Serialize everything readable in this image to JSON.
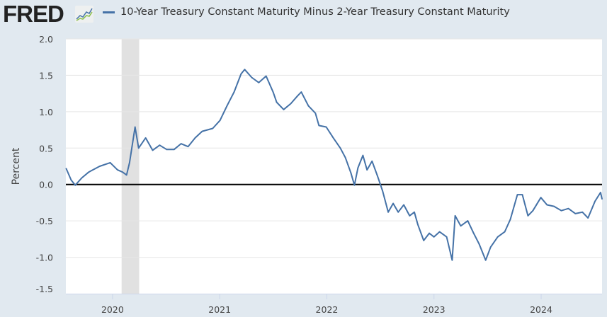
{
  "header": {
    "logo_text": "FRED",
    "logo_icon": "chart-line-icon"
  },
  "chart_data": {
    "type": "line",
    "title": "",
    "legend_position": "top-left",
    "ylabel": "Percent",
    "xlabel": "",
    "ylim": [
      -1.5,
      2.0
    ],
    "xlim": [
      "2019-07-26",
      "2024-07-27"
    ],
    "yticks": [
      "2.0",
      "1.5",
      "1.0",
      "0.5",
      "0.0",
      "-0.5",
      "-1.0",
      "-1.5"
    ],
    "ytick_values": [
      2.0,
      1.5,
      1.0,
      0.5,
      0.0,
      -0.5,
      -1.0,
      -1.5
    ],
    "xticks": [
      "2020",
      "2021",
      "2022",
      "2023",
      "2024"
    ],
    "grid": true,
    "reference_line": 0,
    "recession_shading": [
      [
        "2020-02-01",
        "2020-04-01"
      ]
    ],
    "colors": {
      "series": "#4572a7",
      "recession": "#e1e1e1",
      "zero_line": "#000000",
      "grid": "#e6e6e6",
      "background": "#e1e9f0"
    },
    "series": [
      {
        "name": "10-Year Treasury Constant Maturity Minus 2-Year Treasury Constant Maturity",
        "x": [
          "2019-07-27",
          "2019-08-13",
          "2019-08-27",
          "2019-09-18",
          "2019-10-12",
          "2019-11-18",
          "2019-12-24",
          "2020-01-18",
          "2020-02-04",
          "2020-02-18",
          "2020-02-28",
          "2020-03-18",
          "2020-03-30",
          "2020-04-23",
          "2020-05-17",
          "2020-06-10",
          "2020-07-04",
          "2020-07-29",
          "2020-08-22",
          "2020-09-15",
          "2020-10-09",
          "2020-11-02",
          "2020-12-08",
          "2021-01-02",
          "2021-01-26",
          "2021-02-19",
          "2021-03-15",
          "2021-03-27",
          "2021-04-20",
          "2021-05-14",
          "2021-06-08",
          "2021-07-02",
          "2021-07-14",
          "2021-08-07",
          "2021-08-31",
          "2021-09-24",
          "2021-10-06",
          "2021-10-30",
          "2021-11-23",
          "2021-12-05",
          "2021-12-30",
          "2022-01-23",
          "2022-02-16",
          "2022-03-05",
          "2022-03-24",
          "2022-04-05",
          "2022-04-17",
          "2022-05-04",
          "2022-05-18",
          "2022-06-04",
          "2022-06-23",
          "2022-07-10",
          "2022-07-29",
          "2022-08-15",
          "2022-09-01",
          "2022-09-20",
          "2022-10-10",
          "2022-10-26",
          "2022-11-07",
          "2022-11-27",
          "2022-12-16",
          "2023-01-01",
          "2023-01-20",
          "2023-02-13",
          "2023-03-04",
          "2023-03-14",
          "2023-04-02",
          "2023-04-26",
          "2023-05-16",
          "2023-06-04",
          "2023-06-26",
          "2023-07-13",
          "2023-08-06",
          "2023-08-30",
          "2023-09-18",
          "2023-10-12",
          "2023-10-29",
          "2023-11-17",
          "2023-12-04",
          "2023-12-31",
          "2024-01-21",
          "2024-02-14",
          "2024-03-10",
          "2024-04-03",
          "2024-04-27",
          "2024-05-21",
          "2024-06-09",
          "2024-07-03",
          "2024-07-22",
          "2024-07-27"
        ],
        "y": [
          0.22,
          0.06,
          -0.01,
          0.09,
          0.17,
          0.25,
          0.3,
          0.2,
          0.17,
          0.13,
          0.3,
          0.79,
          0.5,
          0.64,
          0.47,
          0.54,
          0.48,
          0.48,
          0.56,
          0.52,
          0.64,
          0.73,
          0.77,
          0.88,
          1.08,
          1.27,
          1.52,
          1.58,
          1.47,
          1.4,
          1.49,
          1.27,
          1.13,
          1.03,
          1.11,
          1.22,
          1.27,
          1.08,
          0.98,
          0.81,
          0.79,
          0.64,
          0.5,
          0.37,
          0.16,
          -0.01,
          0.23,
          0.4,
          0.2,
          0.32,
          0.11,
          -0.09,
          -0.38,
          -0.26,
          -0.38,
          -0.28,
          -0.43,
          -0.38,
          -0.55,
          -0.77,
          -0.67,
          -0.72,
          -0.65,
          -0.72,
          -1.04,
          -0.43,
          -0.57,
          -0.5,
          -0.67,
          -0.82,
          -1.04,
          -0.86,
          -0.72,
          -0.65,
          -0.48,
          -0.14,
          -0.14,
          -0.43,
          -0.36,
          -0.18,
          -0.28,
          -0.3,
          -0.36,
          -0.33,
          -0.4,
          -0.38,
          -0.46,
          -0.23,
          -0.11,
          -0.2
        ]
      }
    ]
  }
}
